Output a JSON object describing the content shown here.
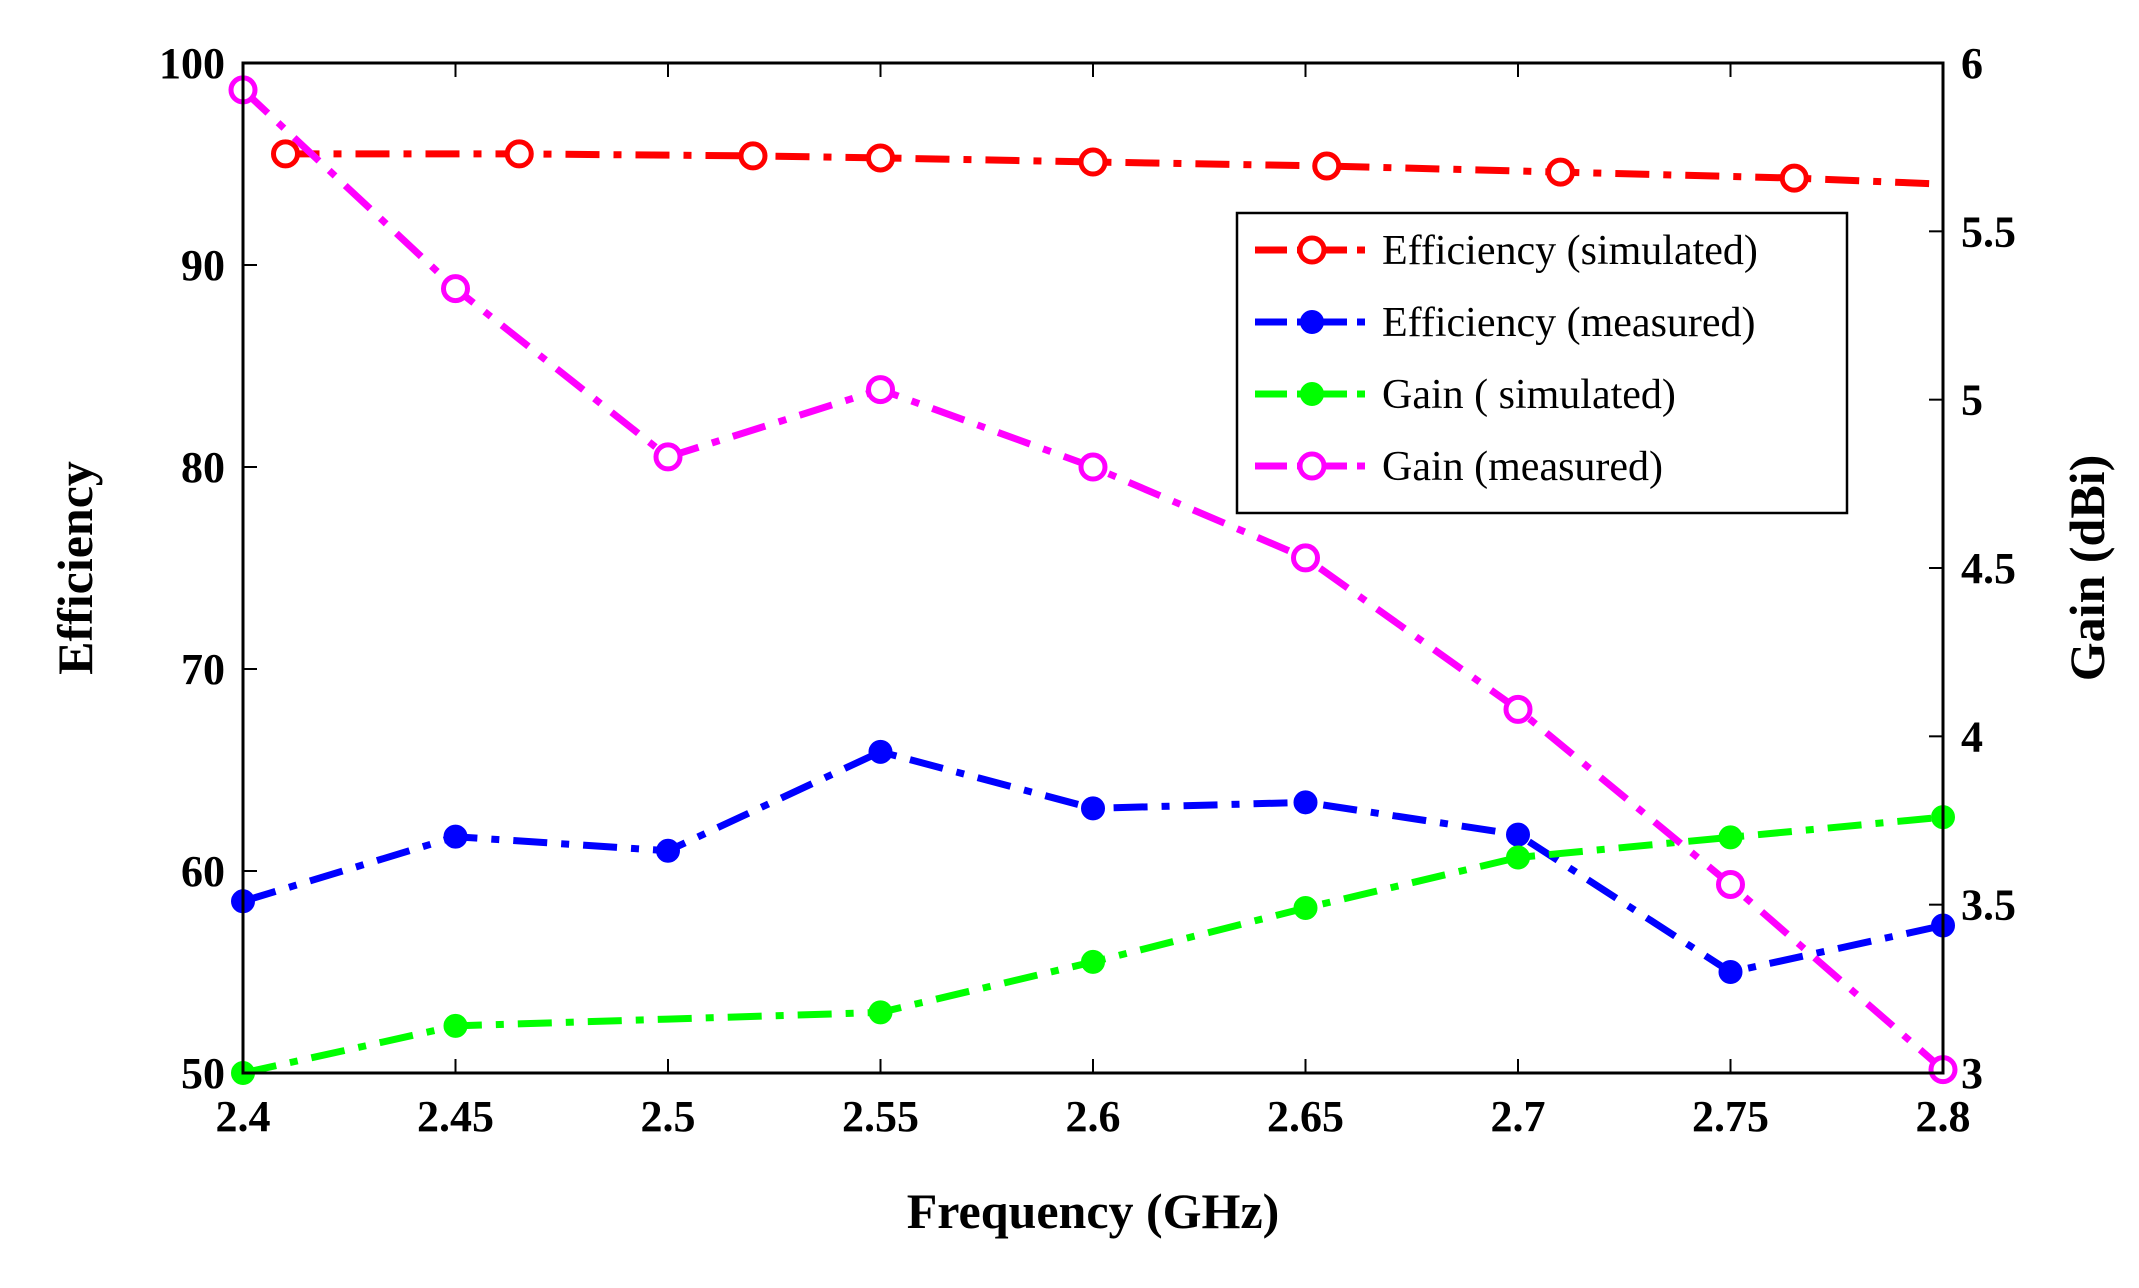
{
  "chart_data": {
    "type": "line",
    "xlabel": "Frequency (GHz)",
    "ylabel_left": "Efficiency",
    "ylabel_right": "Gain (dBi)",
    "xlim": [
      2.4,
      2.8
    ],
    "ylim_left": [
      50,
      100
    ],
    "ylim_right": [
      3,
      6
    ],
    "x_ticks": [
      "2.4",
      "2.45",
      "2.5",
      "2.55",
      "2.6",
      "2.65",
      "2.7",
      "2.75",
      "2.8"
    ],
    "y_left_ticks": [
      "50",
      "60",
      "70",
      "80",
      "90",
      "100"
    ],
    "y_right_ticks": [
      "3",
      "3.5",
      "4",
      "4.5",
      "5",
      "5.5",
      "6"
    ],
    "grid": false,
    "legend_position": "top-right",
    "series": [
      {
        "name": "Efficiency (simulated)",
        "axis": "left",
        "color": "#ff0000",
        "marker": "open-circle",
        "x": [
          2.41,
          2.465,
          2.52,
          2.55,
          2.6,
          2.655,
          2.71,
          2.765
        ],
        "y": [
          95.5,
          95.5,
          95.4,
          95.3,
          95.1,
          94.9,
          94.6,
          94.3
        ],
        "line_end": [
          2.8,
          94.0
        ]
      },
      {
        "name": "Efficiency (measured)",
        "axis": "left",
        "color": "#0000ff",
        "marker": "filled-circle",
        "x": [
          2.4,
          2.45,
          2.5,
          2.55,
          2.6,
          2.65,
          2.7,
          2.75,
          2.8
        ],
        "y": [
          58.5,
          61.7,
          61.0,
          65.9,
          63.1,
          63.4,
          61.8,
          55.0,
          57.3
        ]
      },
      {
        "name": " Gain ( simulated)",
        "axis": "right",
        "color": "#00ff00",
        "marker": "filled-circle",
        "x": [
          2.4,
          2.45,
          2.55,
          2.6,
          2.65,
          2.7,
          2.75,
          2.8
        ],
        "y": [
          3.0,
          3.14,
          3.18,
          3.33,
          3.49,
          3.64,
          3.7,
          3.76
        ],
        "line_via": [
          2.5,
          3.16
        ]
      },
      {
        "name": "Gain (measured)",
        "axis": "right",
        "color": "#ff00ff",
        "marker": "open-circle",
        "x": [
          2.4,
          2.45,
          2.5,
          2.55,
          2.6,
          2.65,
          2.7,
          2.75,
          2.8
        ],
        "y": [
          5.92,
          5.33,
          4.83,
          5.03,
          4.8,
          4.53,
          4.08,
          3.56,
          3.01
        ]
      }
    ]
  }
}
